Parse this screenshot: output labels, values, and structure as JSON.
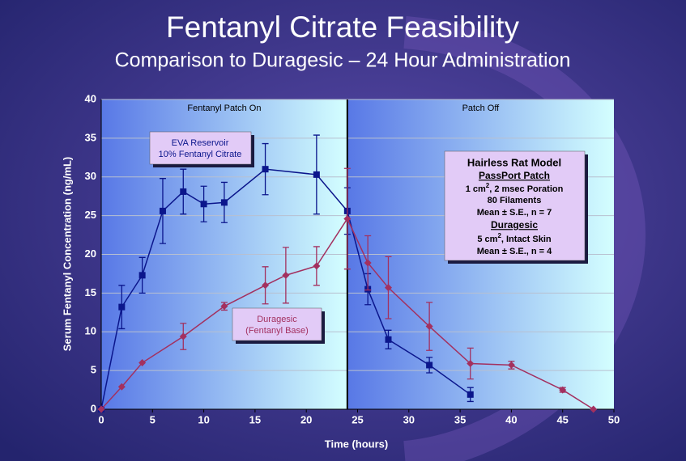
{
  "chart_data": {
    "type": "line",
    "title": "Fentanyl Citrate Feasibility",
    "subtitle": "Comparison to Duragesic – 24 Hour Administration",
    "x_label": "Time (hours)",
    "y_label": "Serum Fentanyl Concentration (ng/mL)",
    "xlim": [
      0,
      50
    ],
    "xticks": [
      0,
      5,
      10,
      15,
      20,
      25,
      30,
      35,
      40,
      45,
      50
    ],
    "ylim": [
      0,
      40
    ],
    "yticks": [
      0,
      5,
      10,
      15,
      20,
      25,
      30,
      35,
      40
    ],
    "grid": true,
    "phase_boundary": 24,
    "phase_labels": [
      "Fentanyl Patch On",
      "Patch Off"
    ],
    "series": [
      {
        "name": [
          "EVA Reservoir",
          "10% Fentanyl Citrate"
        ],
        "color": "#0b168c",
        "marker": "square",
        "x": [
          0,
          2,
          4,
          6,
          8,
          10,
          12,
          16,
          21,
          24,
          26,
          28,
          32,
          36
        ],
        "values": [
          0,
          13.2,
          17.3,
          25.6,
          28.1,
          26.5,
          26.7,
          31,
          30.3,
          25.6,
          15.5,
          9,
          5.7,
          1.9
        ],
        "errors": [
          null,
          2.8,
          2.3,
          4.2,
          2.9,
          2.3,
          2.6,
          3.3,
          5.1,
          3,
          2,
          1.2,
          1,
          0.9
        ]
      },
      {
        "name": [
          "Duragesic",
          "(Fentanyl Base)"
        ],
        "color": "#a3305f",
        "marker": "diamond",
        "x": [
          0,
          2,
          4,
          8,
          12,
          16,
          18,
          21,
          24,
          26,
          28,
          32,
          36,
          40,
          45,
          48
        ],
        "values": [
          0,
          2.9,
          6,
          9.4,
          13.3,
          16,
          17.3,
          18.5,
          24.6,
          18.9,
          15.7,
          10.7,
          5.9,
          5.7,
          2.5,
          0
        ],
        "errors": [
          null,
          null,
          null,
          1.7,
          0.5,
          2.4,
          3.6,
          2.5,
          6.5,
          3.5,
          4,
          3.1,
          2,
          0.5,
          0.3,
          null
        ]
      }
    ],
    "info_box": [
      "Hairless Rat Model",
      "PassPort Patch",
      [
        "1 cm",
        "2",
        ", 2 msec Poration"
      ],
      "80 Filaments",
      "Mean ± S.E., n = 7",
      "Duragesic",
      [
        "5 cm",
        "2",
        ", Intact Skin"
      ],
      "Mean ± S.E., n = 4"
    ]
  }
}
